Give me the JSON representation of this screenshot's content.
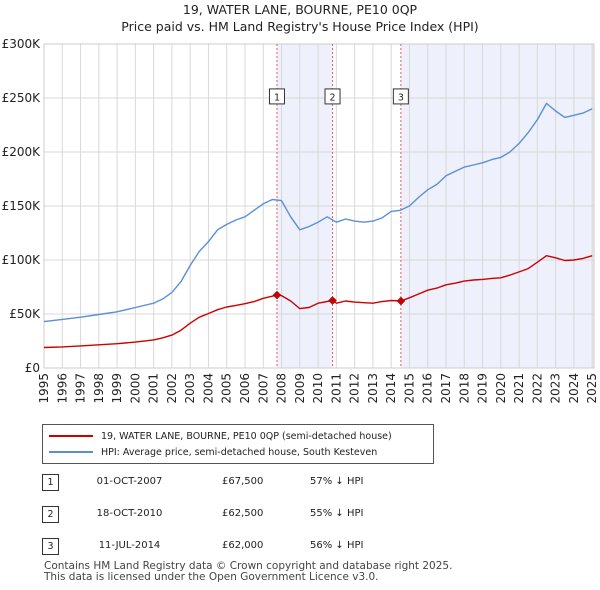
{
  "title_line1": "19, WATER LANE, BOURNE, PE10 0QP",
  "title_line2": "Price paid vs. HM Land Registry's House Price Index (HPI)",
  "colors": {
    "price_line": "#cc0000",
    "hpi_line": "#5b8fd6",
    "shade": "#eef0fb",
    "grid": "#d8d8d8"
  },
  "chart_data": {
    "type": "line",
    "title": "Price paid vs. HM Land Registry's House Price Index (HPI)",
    "xlabel": "",
    "ylabel": "",
    "xlim": [
      1995,
      2025.1
    ],
    "ylim": [
      0,
      300000
    ],
    "y_ticks": [
      {
        "value": 0,
        "label": "£0"
      },
      {
        "value": 50000,
        "label": "£50K"
      },
      {
        "value": 100000,
        "label": "£100K"
      },
      {
        "value": 150000,
        "label": "£150K"
      },
      {
        "value": 200000,
        "label": "£200K"
      },
      {
        "value": 250000,
        "label": "£250K"
      },
      {
        "value": 300000,
        "label": "£300K"
      }
    ],
    "x_ticks": [
      "1995",
      "1996",
      "1997",
      "1998",
      "1999",
      "2000",
      "2001",
      "2002",
      "2003",
      "2004",
      "2005",
      "2006",
      "2007",
      "2008",
      "2009",
      "2010",
      "2011",
      "2012",
      "2013",
      "2014",
      "2015",
      "2016",
      "2017",
      "2018",
      "2019",
      "2020",
      "2021",
      "2022",
      "2023",
      "2024",
      "2025"
    ],
    "series": [
      {
        "name": "19, WATER LANE, BOURNE, PE10 0QP (semi-detached house)",
        "color": "#cc0000",
        "x": [
          1995,
          1996,
          1997,
          1998,
          1999,
          2000,
          2001,
          2001.5,
          2002,
          2002.5,
          2003,
          2003.5,
          2004,
          2004.5,
          2005,
          2005.5,
          2006,
          2006.5,
          2007,
          2007.75,
          2008,
          2008.5,
          2009,
          2009.5,
          2010,
          2010.79,
          2011,
          2011.5,
          2012,
          2012.5,
          2013,
          2013.5,
          2014,
          2014.53,
          2015,
          2015.5,
          2016,
          2016.5,
          2017,
          2017.5,
          2018,
          2018.5,
          2019,
          2019.5,
          2020,
          2020.5,
          2021,
          2021.5,
          2022,
          2022.5,
          2023,
          2023.5,
          2024,
          2024.5,
          2025
        ],
        "y": [
          19000,
          19500,
          20500,
          21500,
          22500,
          24000,
          26000,
          28000,
          30500,
          35000,
          41500,
          47000,
          50500,
          54000,
          56500,
          58000,
          59500,
          61500,
          64500,
          67500,
          67000,
          62000,
          55000,
          56000,
          60000,
          62500,
          60000,
          62000,
          61000,
          60500,
          60000,
          61500,
          62500,
          62000,
          65000,
          68500,
          72000,
          74000,
          77000,
          78500,
          80500,
          81500,
          82000,
          83000,
          83500,
          86000,
          89000,
          92000,
          98000,
          104000,
          102000,
          99500,
          100000,
          101500,
          104000
        ]
      },
      {
        "name": "HPI: Average price, semi-detached house, South Kesteven",
        "color": "#5b8fd6",
        "x": [
          1995,
          1996,
          1997,
          1998,
          1999,
          2000,
          2001,
          2001.5,
          2002,
          2002.5,
          2003,
          2003.5,
          2004,
          2004.5,
          2005,
          2005.5,
          2006,
          2006.5,
          2007,
          2007.5,
          2008,
          2008.5,
          2009,
          2009.5,
          2010,
          2010.5,
          2011,
          2011.5,
          2012,
          2012.5,
          2013,
          2013.5,
          2014,
          2014.5,
          2015,
          2015.5,
          2016,
          2016.5,
          2017,
          2017.5,
          2018,
          2018.5,
          2019,
          2019.5,
          2020,
          2020.5,
          2021,
          2021.5,
          2022,
          2022.5,
          2023,
          2023.5,
          2024,
          2024.5,
          2025
        ],
        "y": [
          43000,
          45000,
          47000,
          49500,
          52000,
          56000,
          60000,
          64000,
          70000,
          80000,
          95000,
          108000,
          117000,
          128000,
          133000,
          137000,
          140000,
          146000,
          152000,
          156000,
          155000,
          140000,
          128000,
          131000,
          135000,
          140000,
          135000,
          138000,
          136000,
          135000,
          136000,
          139000,
          145000,
          146000,
          150000,
          158000,
          165000,
          170000,
          178000,
          182000,
          186000,
          188000,
          190000,
          193000,
          195000,
          200000,
          208000,
          218000,
          230000,
          245000,
          238000,
          232000,
          234000,
          236000,
          240000
        ]
      }
    ],
    "sales": [
      {
        "label": "1",
        "x": 2007.75,
        "y": 67500
      },
      {
        "label": "2",
        "x": 2010.79,
        "y": 62500
      },
      {
        "label": "3",
        "x": 2014.53,
        "y": 62000
      }
    ],
    "shaded_spans": [
      [
        2007.75,
        2010.79
      ],
      [
        2014.53,
        2025.1
      ]
    ]
  },
  "legend": {
    "price_label": "19, WATER LANE, BOURNE, PE10 0QP (semi-detached house)",
    "hpi_label": "HPI: Average price, semi-detached house, South Kesteven"
  },
  "sales_table": [
    {
      "num": "1",
      "date": "01-OCT-2007",
      "price": "£67,500",
      "hpi": "57% ↓ HPI"
    },
    {
      "num": "2",
      "date": "18-OCT-2010",
      "price": "£62,500",
      "hpi": "55% ↓ HPI"
    },
    {
      "num": "3",
      "date": "11-JUL-2014",
      "price": "£62,000",
      "hpi": "56% ↓ HPI"
    }
  ],
  "footer_line1": "Contains HM Land Registry data © Crown copyright and database right 2025.",
  "footer_line2": "This data is licensed under the Open Government Licence v3.0."
}
